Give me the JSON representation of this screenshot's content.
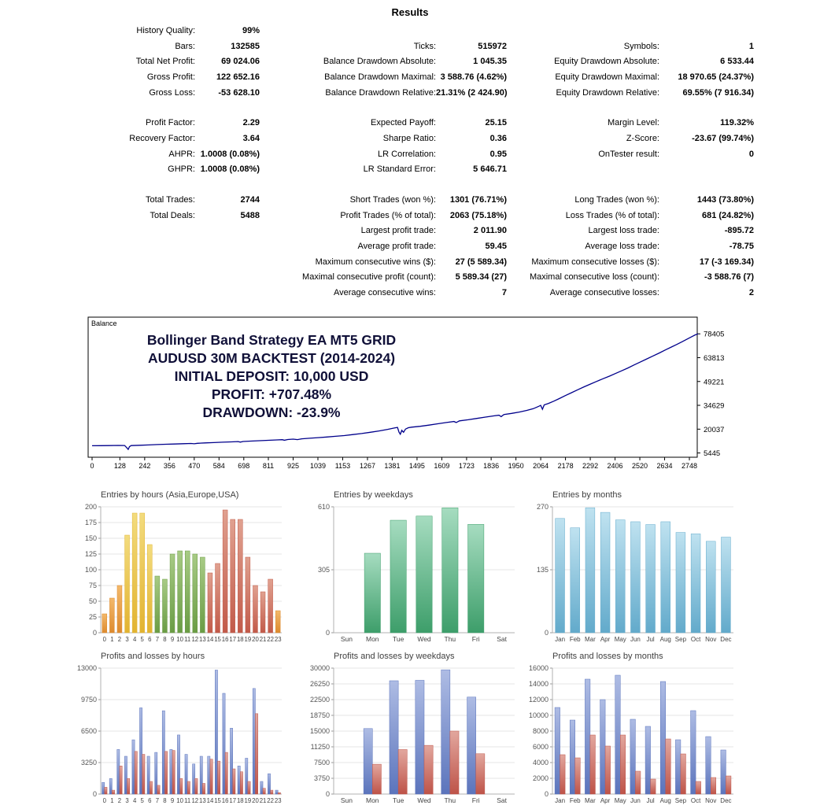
{
  "page": {
    "title": "Results"
  },
  "stats": {
    "rows": [
      [
        "History Quality:",
        "99%",
        "",
        "",
        "",
        ""
      ],
      [
        "Bars:",
        "132585",
        "Ticks:",
        "515972",
        "Symbols:",
        "1"
      ],
      [
        "Total Net Profit:",
        "69 024.06",
        "Balance Drawdown Absolute:",
        "1 045.35",
        "Equity Drawdown Absolute:",
        "6 533.44"
      ],
      [
        "Gross Profit:",
        "122 652.16",
        "Balance Drawdown Maximal:",
        "3 588.76 (4.62%)",
        "Equity Drawdown Maximal:",
        "18 970.65 (24.37%)"
      ],
      [
        "Gross Loss:",
        "-53 628.10",
        "Balance Drawdown Relative:",
        "21.31% (2 424.90)",
        "Equity Drawdown Relative:",
        "69.55% (7 916.34)"
      ],
      [],
      [
        "Profit Factor:",
        "2.29",
        "Expected Payoff:",
        "25.15",
        "Margin Level:",
        "119.32%"
      ],
      [
        "Recovery Factor:",
        "3.64",
        "Sharpe Ratio:",
        "0.36",
        "Z-Score:",
        "-23.67 (99.74%)"
      ],
      [
        "AHPR:",
        "1.0008 (0.08%)",
        "LR Correlation:",
        "0.95",
        "OnTester result:",
        "0"
      ],
      [
        "GHPR:",
        "1.0008 (0.08%)",
        "LR Standard Error:",
        "5 646.71",
        "",
        ""
      ],
      [],
      [
        "Total Trades:",
        "2744",
        "Short Trades (won %):",
        "1301 (76.71%)",
        "Long Trades (won %):",
        "1443 (73.80%)"
      ],
      [
        "Total Deals:",
        "5488",
        "Profit Trades (% of total):",
        "2063 (75.18%)",
        "Loss Trades (% of total):",
        "681 (24.82%)"
      ],
      [
        "",
        "",
        "Largest profit trade:",
        "2 011.90",
        "Largest loss trade:",
        "-895.72"
      ],
      [
        "",
        "",
        "Average profit trade:",
        "59.45",
        "Average loss trade:",
        "-78.75"
      ],
      [
        "",
        "",
        "Maximum consecutive wins ($):",
        "27 (5 589.34)",
        "Maximum consecutive losses ($):",
        "17 (-3 169.34)"
      ],
      [
        "",
        "",
        "Maximal consecutive profit (count):",
        "5 589.34 (27)",
        "Maximal consecutive loss (count):",
        "-3 588.76 (7)"
      ],
      [
        "",
        "",
        "Average consecutive wins:",
        "7",
        "Average consecutive losses:",
        "2"
      ]
    ]
  },
  "chart_data": [
    {
      "id": "balance",
      "type": "line",
      "legend": "Balance",
      "overlay_lines": [
        "Bollinger Band Strategy EA MT5 GRID",
        "AUDUSD 30M BACKTEST (2014-2024)",
        "INITIAL DEPOSIT: 10,000 USD",
        "PROFIT: +707.48%",
        "DRAWDOWN: -23.9%"
      ],
      "overlay_color": "#101038",
      "line_color": "#00008b",
      "y_ticks": [
        78405,
        63813,
        49221,
        34629,
        20037,
        5445
      ],
      "x_ticks": [
        0,
        128,
        242,
        356,
        470,
        584,
        698,
        811,
        925,
        1039,
        1153,
        1267,
        1381,
        1495,
        1609,
        1723,
        1836,
        1950,
        2064,
        2178,
        2292,
        2406,
        2520,
        2634,
        2748
      ],
      "points": [
        [
          0,
          9900
        ],
        [
          40,
          9940
        ],
        [
          80,
          9990
        ],
        [
          120,
          10050
        ],
        [
          150,
          10020
        ],
        [
          160,
          8600
        ],
        [
          166,
          7600
        ],
        [
          172,
          9300
        ],
        [
          180,
          9980
        ],
        [
          220,
          10150
        ],
        [
          260,
          10350
        ],
        [
          300,
          10600
        ],
        [
          340,
          10780
        ],
        [
          380,
          10950
        ],
        [
          420,
          11120
        ],
        [
          455,
          11280
        ],
        [
          470,
          11100
        ],
        [
          485,
          11350
        ],
        [
          520,
          11600
        ],
        [
          560,
          11820
        ],
        [
          600,
          12040
        ],
        [
          640,
          12260
        ],
        [
          672,
          12420
        ],
        [
          682,
          12100
        ],
        [
          695,
          12500
        ],
        [
          730,
          12700
        ],
        [
          770,
          12950
        ],
        [
          810,
          13200
        ],
        [
          850,
          13450
        ],
        [
          875,
          13580
        ],
        [
          885,
          13250
        ],
        [
          900,
          13700
        ],
        [
          925,
          13950
        ],
        [
          945,
          13650
        ],
        [
          965,
          14100
        ],
        [
          1000,
          14450
        ],
        [
          1040,
          14850
        ],
        [
          1080,
          15250
        ],
        [
          1120,
          15650
        ],
        [
          1160,
          16100
        ],
        [
          1200,
          16700
        ],
        [
          1240,
          17350
        ],
        [
          1280,
          18100
        ],
        [
          1320,
          18950
        ],
        [
          1360,
          19900
        ],
        [
          1390,
          20700
        ],
        [
          1405,
          21100
        ],
        [
          1412,
          18200
        ],
        [
          1418,
          16900
        ],
        [
          1425,
          19300
        ],
        [
          1433,
          18100
        ],
        [
          1442,
          20100
        ],
        [
          1455,
          20900
        ],
        [
          1470,
          21250
        ],
        [
          1510,
          21800
        ],
        [
          1550,
          22500
        ],
        [
          1590,
          23300
        ],
        [
          1630,
          24100
        ],
        [
          1665,
          24700
        ],
        [
          1675,
          24100
        ],
        [
          1690,
          25100
        ],
        [
          1730,
          25800
        ],
        [
          1770,
          26600
        ],
        [
          1810,
          27400
        ],
        [
          1850,
          28200
        ],
        [
          1872,
          28600
        ],
        [
          1882,
          27700
        ],
        [
          1895,
          29000
        ],
        [
          1930,
          29700
        ],
        [
          1965,
          30500
        ],
        [
          2000,
          31500
        ],
        [
          2030,
          32600
        ],
        [
          2055,
          34000
        ],
        [
          2064,
          34600
        ],
        [
          2072,
          32200
        ],
        [
          2080,
          34900
        ],
        [
          2100,
          35800
        ],
        [
          2125,
          37200
        ],
        [
          2150,
          38800
        ],
        [
          2178,
          40600
        ],
        [
          2205,
          42300
        ],
        [
          2235,
          44200
        ],
        [
          2265,
          46000
        ],
        [
          2292,
          47600
        ],
        [
          2320,
          49200
        ],
        [
          2350,
          50900
        ],
        [
          2380,
          52500
        ],
        [
          2406,
          54000
        ],
        [
          2435,
          55700
        ],
        [
          2465,
          57500
        ],
        [
          2495,
          59400
        ],
        [
          2520,
          61000
        ],
        [
          2550,
          62900
        ],
        [
          2580,
          64800
        ],
        [
          2610,
          66700
        ],
        [
          2640,
          68700
        ],
        [
          2665,
          70300
        ],
        [
          2690,
          71900
        ],
        [
          2715,
          73600
        ],
        [
          2740,
          75300
        ],
        [
          2760,
          76700
        ],
        [
          2775,
          77800
        ],
        [
          2788,
          78405
        ]
      ]
    },
    {
      "id": "entries_by_hours",
      "type": "bar",
      "title": "Entries by hours (Asia,Europe,USA)",
      "y_ticks": [
        0,
        25,
        50,
        75,
        100,
        125,
        150,
        175,
        200
      ],
      "categories": [
        "0",
        "1",
        "2",
        "3",
        "4",
        "5",
        "6",
        "7",
        "8",
        "9",
        "10",
        "11",
        "12",
        "13",
        "14",
        "15",
        "16",
        "17",
        "18",
        "19",
        "20",
        "21",
        "22",
        "23"
      ],
      "values": [
        30,
        55,
        75,
        155,
        190,
        190,
        140,
        90,
        85,
        125,
        130,
        130,
        125,
        120,
        95,
        110,
        195,
        180,
        180,
        120,
        75,
        65,
        85,
        35
      ],
      "bar_colors": [
        "orange",
        "orange",
        "orange",
        "yellow",
        "yellow",
        "yellow",
        "yellow",
        "green",
        "green",
        "green",
        "green",
        "green",
        "green",
        "green",
        "red",
        "red",
        "red",
        "red",
        "red",
        "red",
        "red",
        "red",
        "red",
        "orange"
      ],
      "palette": {
        "orange": [
          "#F3B96B",
          "#DD8A2E"
        ],
        "yellow": [
          "#F3DC7E",
          "#E2B330"
        ],
        "green": [
          "#A8CB85",
          "#6A9C44"
        ],
        "red": [
          "#E0A190",
          "#C25A49"
        ]
      },
      "x_font": 7.8
    },
    {
      "id": "entries_by_weekdays",
      "type": "bar",
      "title": "Entries by weekdays",
      "y_ticks": [
        0,
        305,
        610
      ],
      "categories": [
        "Sun",
        "Mon",
        "Tue",
        "Wed",
        "Thu",
        "Fri",
        "Sat"
      ],
      "values": [
        0,
        385,
        545,
        565,
        605,
        525,
        0
      ],
      "color_key": "green",
      "palette": {
        "green": [
          "#A6DCC0",
          "#3D9E6A"
        ]
      },
      "x_font": 8.5
    },
    {
      "id": "entries_by_months",
      "type": "bar",
      "title": "Entries by months",
      "y_ticks": [
        0,
        135,
        270
      ],
      "categories": [
        "Jan",
        "Feb",
        "Mar",
        "Apr",
        "May",
        "Jun",
        "Jul",
        "Aug",
        "Sep",
        "Oct",
        "Nov",
        "Dec"
      ],
      "values": [
        245,
        225,
        268,
        258,
        242,
        238,
        232,
        238,
        215,
        212,
        196,
        205
      ],
      "color_key": "blue",
      "palette": {
        "blue": [
          "#BFE2F0",
          "#62AACB"
        ]
      },
      "x_font": 8
    },
    {
      "id": "pl_by_hours",
      "type": "bar",
      "title": "Profits and losses by hours",
      "y_ticks": [
        0,
        3250,
        6500,
        9750,
        13000
      ],
      "categories": [
        "0",
        "1",
        "2",
        "3",
        "4",
        "5",
        "6",
        "7",
        "8",
        "9",
        "10",
        "11",
        "12",
        "13",
        "14",
        "15",
        "16",
        "17",
        "18",
        "19",
        "20",
        "21",
        "22",
        "23"
      ],
      "series": [
        {
          "name": "profit",
          "color_key": "blue",
          "values": [
            1200,
            1600,
            4600,
            3900,
            5600,
            8900,
            3900,
            4300,
            8600,
            4600,
            6100,
            4100,
            3100,
            3900,
            3900,
            12800,
            10400,
            6800,
            2900,
            3700,
            10900,
            1300,
            2100,
            400
          ]
        },
        {
          "name": "loss",
          "color_key": "red",
          "values": [
            700,
            400,
            2900,
            1600,
            4400,
            4100,
            1300,
            900,
            4400,
            4500,
            1600,
            1300,
            1600,
            1100,
            3600,
            3400,
            4300,
            2600,
            2300,
            1300,
            8300,
            600,
            400,
            150
          ]
        }
      ],
      "palette": {
        "blue": [
          "#AEBCE4",
          "#5B74BC"
        ],
        "red": [
          "#E2A79E",
          "#BE5348"
        ]
      },
      "x_font": 7.8
    },
    {
      "id": "pl_by_weekdays",
      "type": "bar",
      "title": "Profits and losses by weekdays",
      "y_ticks": [
        0,
        3750,
        7500,
        11250,
        15000,
        18750,
        22500,
        26250,
        30000
      ],
      "categories": [
        "Sun",
        "Mon",
        "Tue",
        "Wed",
        "Thu",
        "Fri",
        "Sat"
      ],
      "series": [
        {
          "name": "profit",
          "color_key": "blue",
          "values": [
            0,
            15600,
            27000,
            27100,
            29600,
            23100,
            0
          ]
        },
        {
          "name": "loss",
          "color_key": "red",
          "values": [
            0,
            7100,
            10600,
            11600,
            15000,
            9600,
            0
          ]
        }
      ],
      "palette": {
        "blue": [
          "#AEBCE4",
          "#5B74BC"
        ],
        "red": [
          "#E2A79E",
          "#BE5348"
        ]
      },
      "x_font": 8.5
    },
    {
      "id": "pl_by_months",
      "type": "bar",
      "title": "Profits and losses by months",
      "y_ticks": [
        0,
        2000,
        4000,
        6000,
        8000,
        10000,
        12000,
        14000,
        16000
      ],
      "categories": [
        "Jan",
        "Feb",
        "Mar",
        "Apr",
        "May",
        "Jun",
        "Jul",
        "Aug",
        "Sep",
        "Oct",
        "Nov",
        "Dec"
      ],
      "series": [
        {
          "name": "profit",
          "color_key": "blue",
          "values": [
            11000,
            9400,
            14600,
            12000,
            15100,
            9500,
            8600,
            14300,
            6900,
            10600,
            7300,
            5600
          ]
        },
        {
          "name": "loss",
          "color_key": "red",
          "values": [
            5000,
            4600,
            7500,
            6100,
            7500,
            2900,
            1900,
            7000,
            5100,
            1600,
            2100,
            2300
          ]
        }
      ],
      "palette": {
        "blue": [
          "#AEBCE4",
          "#5B74BC"
        ],
        "red": [
          "#E2A79E",
          "#BE5348"
        ]
      },
      "x_font": 8
    }
  ]
}
